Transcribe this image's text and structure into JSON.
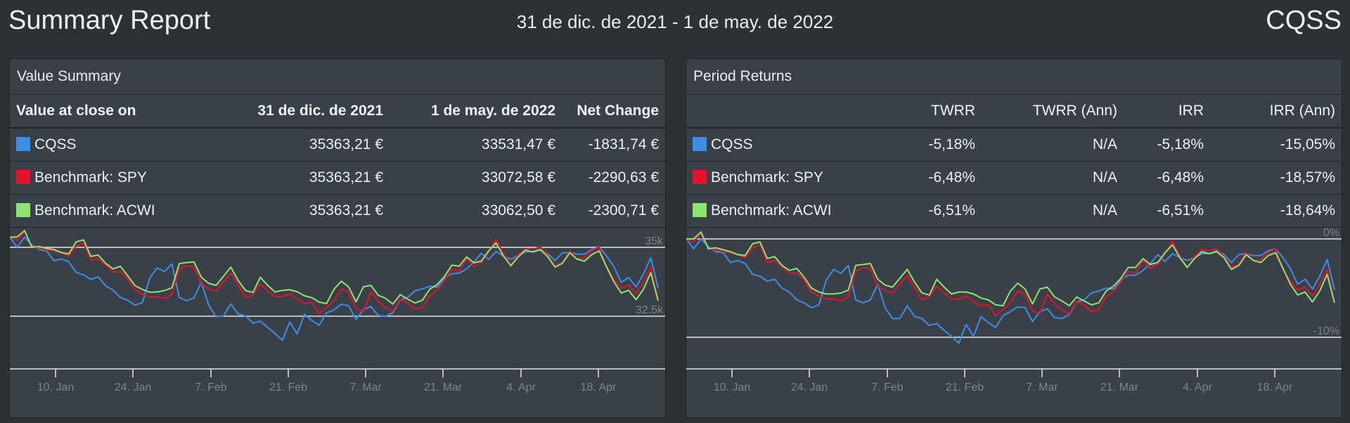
{
  "header": {
    "title": "Summary Report",
    "date_range": "31 de dic. de 2021 - 1 de may. de 2022",
    "account": "CQSS"
  },
  "value_summary": {
    "title": "Value Summary",
    "columns": [
      "Value at close on",
      "31 de dic. de 2021",
      "1 de may. de 2022",
      "Net Change"
    ],
    "rows": [
      {
        "name": "CQSS",
        "color": "#3b8ee8",
        "start": "35363,21 €",
        "end": "33531,47 €",
        "change": "-1831,74 €"
      },
      {
        "name": "Benchmark: SPY",
        "color": "#e8112d",
        "start": "35363,21 €",
        "end": "33072,58 €",
        "change": "-2290,63 €"
      },
      {
        "name": "Benchmark: ACWI",
        "color": "#8de46f",
        "start": "35363,21 €",
        "end": "33062,50 €",
        "change": "-2300,71 €"
      }
    ]
  },
  "period_returns": {
    "title": "Period Returns",
    "columns": [
      "",
      "TWRR",
      "TWRR (Ann)",
      "IRR",
      "IRR (Ann)"
    ],
    "rows": [
      {
        "name": "CQSS",
        "color": "#3b8ee8",
        "twrr": "-5,18%",
        "twrr_ann": "N/A",
        "irr": "-5,18%",
        "irr_ann": "-15,05%"
      },
      {
        "name": "Benchmark: SPY",
        "color": "#e8112d",
        "twrr": "-6,48%",
        "twrr_ann": "N/A",
        "irr": "-6,48%",
        "irr_ann": "-18,57%"
      },
      {
        "name": "Benchmark: ACWI",
        "color": "#8de46f",
        "twrr": "-6,51%",
        "twrr_ann": "N/A",
        "irr": "-6,51%",
        "irr_ann": "-18,64%"
      }
    ]
  },
  "chart_data": [
    {
      "type": "line",
      "x_ticks": [
        "10. Jan",
        "24. Jan",
        "7. Feb",
        "21. Feb",
        "7. Mar",
        "21. Mar",
        "4. Apr",
        "18. Apr"
      ],
      "y_ticks": [
        "35k",
        "32.5k"
      ],
      "grid": true,
      "series": [
        {
          "name": "CQSS",
          "color": "#3b8ee8",
          "values": [
            35363,
            35010,
            35370,
            35080,
            34920,
            34870,
            34510,
            34580,
            34480,
            34090,
            34000,
            33840,
            33930,
            33600,
            33450,
            33180,
            33080,
            32900,
            33000,
            33890,
            34250,
            34120,
            34400,
            33180,
            33060,
            33170,
            33730,
            32890,
            32480,
            32510,
            32950,
            32580,
            32510,
            32250,
            32320,
            32090,
            31870,
            31630,
            32290,
            31860,
            32570,
            32340,
            32170,
            32620,
            32730,
            32940,
            32880,
            32380,
            32740,
            32850,
            32530,
            32490,
            32630,
            33090,
            33180,
            33420,
            33490,
            33590,
            33550,
            33890,
            34040,
            34060,
            34220,
            34470,
            34780,
            34560,
            34850,
            34680,
            34570,
            34700,
            34830,
            34850,
            34930,
            34780,
            34520,
            34790,
            34820,
            34750,
            34750,
            34920,
            35020,
            34680,
            34300,
            33730,
            33900,
            33560,
            34020,
            34620,
            33531
          ]
        },
        {
          "name": "Benchmark: SPY",
          "color": "#e8112d",
          "values": [
            35363,
            35250,
            35560,
            35000,
            34970,
            34900,
            34870,
            34800,
            34690,
            35050,
            35150,
            34530,
            34580,
            34370,
            34110,
            34120,
            33860,
            33470,
            33300,
            33200,
            33200,
            33150,
            33280,
            34200,
            34330,
            34300,
            33670,
            33490,
            33410,
            33750,
            34060,
            33630,
            33180,
            33260,
            33650,
            33420,
            33220,
            33210,
            33310,
            33110,
            32970,
            33000,
            32600,
            32820,
            33060,
            33480,
            33380,
            32780,
            32660,
            33390,
            33040,
            32810,
            32680,
            33110,
            32980,
            32760,
            32810,
            33260,
            33440,
            33790,
            34210,
            34130,
            34600,
            34290,
            34450,
            34820,
            35280,
            34780,
            34350,
            34720,
            34960,
            34930,
            35020,
            34730,
            34320,
            34450,
            34870,
            34580,
            34630,
            34880,
            35010,
            34280,
            33830,
            33510,
            33630,
            33320,
            33720,
            34280,
            33072
          ]
        },
        {
          "name": "Benchmark: ACWI",
          "color": "#8de46f",
          "values": [
            35363,
            35380,
            35610,
            35000,
            35030,
            34960,
            34920,
            34810,
            34760,
            35200,
            35270,
            34670,
            34720,
            34420,
            34220,
            34310,
            33970,
            33610,
            33470,
            33370,
            33380,
            33430,
            33530,
            34410,
            34450,
            34470,
            33910,
            33690,
            33620,
            33950,
            34280,
            33790,
            33430,
            33360,
            33910,
            33620,
            33380,
            33440,
            33460,
            33390,
            33240,
            33170,
            33010,
            32960,
            33480,
            33770,
            33560,
            33020,
            33570,
            33620,
            33260,
            33150,
            32940,
            33280,
            33120,
            32980,
            33080,
            33480,
            33650,
            33940,
            34350,
            34320,
            34650,
            34440,
            34500,
            34870,
            35160,
            34690,
            34330,
            34650,
            34900,
            34830,
            34910,
            34670,
            34280,
            34420,
            34800,
            34570,
            34500,
            34740,
            34870,
            34290,
            33750,
            33340,
            33440,
            33100,
            33470,
            34080,
            33062
          ]
        }
      ]
    },
    {
      "type": "line",
      "x_ticks": [
        "10. Jan",
        "24. Jan",
        "7. Feb",
        "21. Feb",
        "7. Mar",
        "21. Mar",
        "4. Apr",
        "18. Apr"
      ],
      "y_ticks": [
        "0%",
        "-10%"
      ],
      "grid": true,
      "series": [
        {
          "name": "CQSS",
          "color": "#3b8ee8",
          "values": [
            0.0,
            -1.0,
            0.0,
            -0.8,
            -1.3,
            -1.4,
            -2.4,
            -2.2,
            -2.5,
            -3.6,
            -3.8,
            -4.3,
            -4.1,
            -5.0,
            -5.4,
            -6.2,
            -6.5,
            -7.0,
            -6.7,
            -4.2,
            -3.1,
            -3.5,
            -2.7,
            -6.2,
            -6.5,
            -6.2,
            -4.6,
            -7.0,
            -8.1,
            -8.1,
            -6.8,
            -7.9,
            -8.1,
            -8.8,
            -8.6,
            -9.3,
            -9.9,
            -10.6,
            -8.7,
            -9.9,
            -7.9,
            -8.5,
            -9.0,
            -7.8,
            -7.4,
            -6.9,
            -7.0,
            -8.4,
            -7.4,
            -7.1,
            -8.0,
            -8.1,
            -7.7,
            -6.4,
            -6.2,
            -5.5,
            -5.3,
            -5.0,
            -5.1,
            -4.2,
            -3.7,
            -3.7,
            -3.2,
            -2.5,
            -1.6,
            -2.3,
            -1.5,
            -1.9,
            -2.2,
            -1.9,
            -1.5,
            -1.5,
            -1.2,
            -1.6,
            -2.4,
            -1.6,
            -1.5,
            -1.7,
            -1.7,
            -1.2,
            -1.0,
            -1.9,
            -3.0,
            -4.6,
            -4.1,
            -5.1,
            -3.8,
            -2.1,
            -5.18
          ]
        },
        {
          "name": "Benchmark: SPY",
          "color": "#e8112d",
          "values": [
            0.0,
            -0.3,
            0.6,
            -1.0,
            -1.1,
            -1.3,
            -1.4,
            -1.6,
            -1.9,
            -0.9,
            -0.6,
            -2.4,
            -2.2,
            -2.8,
            -3.5,
            -3.5,
            -4.2,
            -5.4,
            -5.8,
            -6.1,
            -6.1,
            -6.3,
            -5.9,
            -3.3,
            -2.9,
            -3.0,
            -4.8,
            -5.3,
            -5.5,
            -4.6,
            -3.7,
            -4.9,
            -6.2,
            -5.9,
            -4.8,
            -5.5,
            -6.1,
            -6.1,
            -5.8,
            -6.4,
            -6.8,
            -6.7,
            -7.8,
            -7.2,
            -6.5,
            -5.3,
            -5.6,
            -7.3,
            -7.6,
            -5.6,
            -6.6,
            -7.2,
            -7.6,
            -6.4,
            -6.7,
            -7.4,
            -7.2,
            -5.9,
            -5.4,
            -4.4,
            -3.3,
            -3.5,
            -2.2,
            -3.0,
            -2.6,
            -1.5,
            -0.2,
            -1.7,
            -2.9,
            -1.8,
            -1.1,
            -1.2,
            -1.0,
            -1.8,
            -2.9,
            -2.6,
            -1.4,
            -2.2,
            -2.1,
            -1.4,
            -1.0,
            -3.1,
            -4.3,
            -5.2,
            -4.9,
            -5.8,
            -4.6,
            -3.1,
            -6.48
          ]
        },
        {
          "name": "Benchmark: ACWI",
          "color": "#8de46f",
          "values": [
            0.0,
            0.0,
            0.7,
            -1.0,
            -0.9,
            -1.1,
            -1.3,
            -1.6,
            -1.7,
            -0.5,
            -0.3,
            -2.0,
            -1.8,
            -2.7,
            -3.2,
            -3.0,
            -3.9,
            -5.0,
            -5.4,
            -5.6,
            -5.6,
            -5.5,
            -5.2,
            -2.7,
            -2.6,
            -2.5,
            -4.1,
            -4.7,
            -4.9,
            -4.0,
            -3.1,
            -4.4,
            -5.5,
            -5.7,
            -4.1,
            -4.9,
            -5.6,
            -5.4,
            -5.4,
            -5.6,
            -6.0,
            -6.2,
            -6.7,
            -6.8,
            -5.3,
            -4.5,
            -5.1,
            -6.6,
            -5.1,
            -4.9,
            -5.9,
            -6.3,
            -6.8,
            -5.9,
            -6.3,
            -6.7,
            -6.5,
            -5.3,
            -4.8,
            -4.0,
            -2.9,
            -2.9,
            -2.0,
            -2.6,
            -2.4,
            -1.4,
            -0.6,
            -1.9,
            -2.9,
            -2.0,
            -1.3,
            -1.5,
            -1.3,
            -1.9,
            -3.1,
            -2.7,
            -1.6,
            -2.2,
            -2.4,
            -1.7,
            -1.4,
            -3.0,
            -4.6,
            -5.7,
            -5.4,
            -6.4,
            -5.3,
            -3.6,
            -6.51
          ]
        }
      ]
    }
  ]
}
